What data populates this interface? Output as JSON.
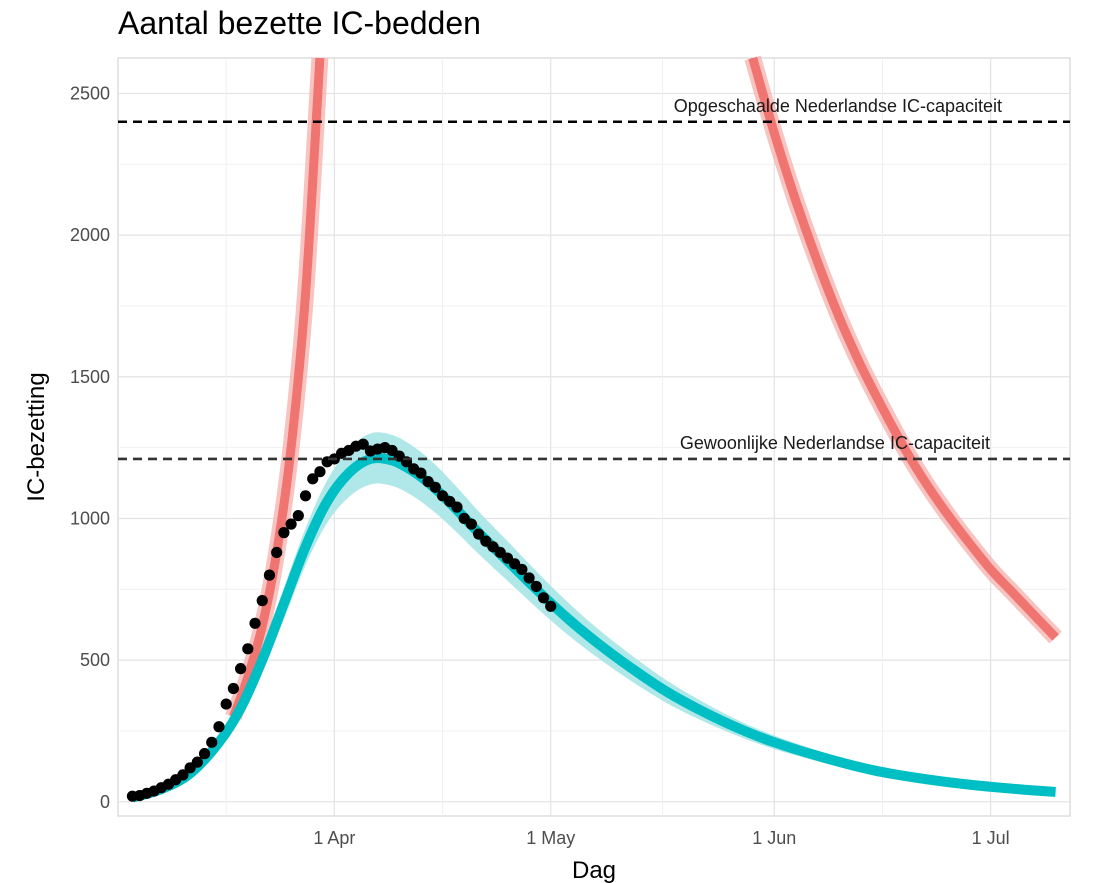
{
  "chart_data": {
    "type": "line",
    "title": "Aantal bezette IC-bedden",
    "xlabel": "Dag",
    "ylabel": "IC-bezetting",
    "grid": true,
    "x_ticks": [
      "1 Apr",
      "1 May",
      "1 Jun",
      "1 Jul"
    ],
    "y_ticks": [
      0,
      500,
      1000,
      1500,
      2000,
      2500
    ],
    "xlim": [
      "2020-03-02",
      "2020-07-12"
    ],
    "ylim": [
      -50,
      2625
    ],
    "reference_lines": [
      {
        "label": "Opgeschaalde Nederlandse IC-capaciteit",
        "y": 2400,
        "color": "#000000"
      },
      {
        "label": "Gewoonlijke Nederlandse IC-capaciteit",
        "y": 1210,
        "color": "#333333"
      }
    ],
    "series": [
      {
        "type": "line",
        "color": "#f07470",
        "band_color": "#f4b0ad",
        "x": [
          "2020-03-18",
          "2020-03-20",
          "2020-03-22",
          "2020-03-24",
          "2020-03-26",
          "2020-03-28",
          "2020-03-30",
          "2020-05-29",
          "2020-06-01",
          "2020-06-04",
          "2020-06-07",
          "2020-06-10",
          "2020-06-13",
          "2020-06-16",
          "2020-06-19",
          "2020-06-22",
          "2020-06-25",
          "2020-06-28",
          "2020-07-01",
          "2020-07-04",
          "2020-07-07",
          "2020-07-10"
        ],
        "y": [
          300,
          440,
          620,
          880,
          1250,
          1790,
          2625,
          2625,
          2360,
          2120,
          1905,
          1710,
          1540,
          1390,
          1250,
          1125,
          1015,
          915,
          820,
          740,
          660,
          580
        ]
      },
      {
        "type": "line",
        "color": "#00bfc4",
        "band_color": "#a7e6e7",
        "x": [
          "2020-03-04",
          "2020-03-08",
          "2020-03-12",
          "2020-03-16",
          "2020-03-19",
          "2020-03-22",
          "2020-03-25",
          "2020-03-28",
          "2020-03-31",
          "2020-04-03",
          "2020-04-06",
          "2020-04-09",
          "2020-04-12",
          "2020-04-15",
          "2020-04-18",
          "2020-04-21",
          "2020-04-25",
          "2020-04-29",
          "2020-05-03",
          "2020-05-07",
          "2020-05-12",
          "2020-05-17",
          "2020-05-22",
          "2020-05-27",
          "2020-06-01",
          "2020-06-08",
          "2020-06-15",
          "2020-06-22",
          "2020-06-29",
          "2020-07-06",
          "2020-07-10"
        ],
        "y": [
          15,
          45,
          100,
          210,
          330,
          500,
          700,
          900,
          1060,
          1160,
          1210,
          1205,
          1165,
          1105,
          1030,
          950,
          850,
          750,
          655,
          570,
          475,
          390,
          320,
          260,
          210,
          155,
          110,
          80,
          58,
          42,
          35
        ],
        "band_halfwidth": [
          8,
          10,
          15,
          25,
          35,
          45,
          55,
          65,
          75,
          85,
          90,
          90,
          88,
          85,
          80,
          75,
          70,
          64,
          58,
          52,
          46,
          40,
          34,
          28,
          24,
          18,
          14,
          10,
          8,
          6,
          6
        ]
      },
      {
        "type": "scatter",
        "color": "#000000",
        "x": [
          "2020-03-04",
          "2020-03-05",
          "2020-03-06",
          "2020-03-07",
          "2020-03-08",
          "2020-03-09",
          "2020-03-10",
          "2020-03-11",
          "2020-03-12",
          "2020-03-13",
          "2020-03-14",
          "2020-03-15",
          "2020-03-16",
          "2020-03-17",
          "2020-03-18",
          "2020-03-19",
          "2020-03-20",
          "2020-03-21",
          "2020-03-22",
          "2020-03-23",
          "2020-03-24",
          "2020-03-25",
          "2020-03-26",
          "2020-03-27",
          "2020-03-28",
          "2020-03-29",
          "2020-03-30",
          "2020-03-31",
          "2020-04-01",
          "2020-04-02",
          "2020-04-03",
          "2020-04-04",
          "2020-04-05",
          "2020-04-06",
          "2020-04-07",
          "2020-04-08",
          "2020-04-09",
          "2020-04-10",
          "2020-04-11",
          "2020-04-12",
          "2020-04-13",
          "2020-04-14",
          "2020-04-15",
          "2020-04-16",
          "2020-04-17",
          "2020-04-18",
          "2020-04-19",
          "2020-04-20",
          "2020-04-21",
          "2020-04-22",
          "2020-04-23",
          "2020-04-24",
          "2020-04-25",
          "2020-04-26",
          "2020-04-27",
          "2020-04-28",
          "2020-04-29",
          "2020-04-30",
          "2020-05-01"
        ],
        "y": [
          20,
          22,
          30,
          38,
          50,
          62,
          78,
          95,
          120,
          140,
          170,
          210,
          265,
          345,
          400,
          470,
          540,
          630,
          710,
          800,
          880,
          950,
          980,
          1010,
          1080,
          1140,
          1165,
          1200,
          1210,
          1230,
          1240,
          1255,
          1262,
          1238,
          1245,
          1250,
          1240,
          1220,
          1200,
          1175,
          1160,
          1130,
          1110,
          1080,
          1060,
          1040,
          1000,
          980,
          945,
          920,
          900,
          880,
          860,
          840,
          820,
          790,
          760,
          720,
          690
        ]
      }
    ]
  }
}
